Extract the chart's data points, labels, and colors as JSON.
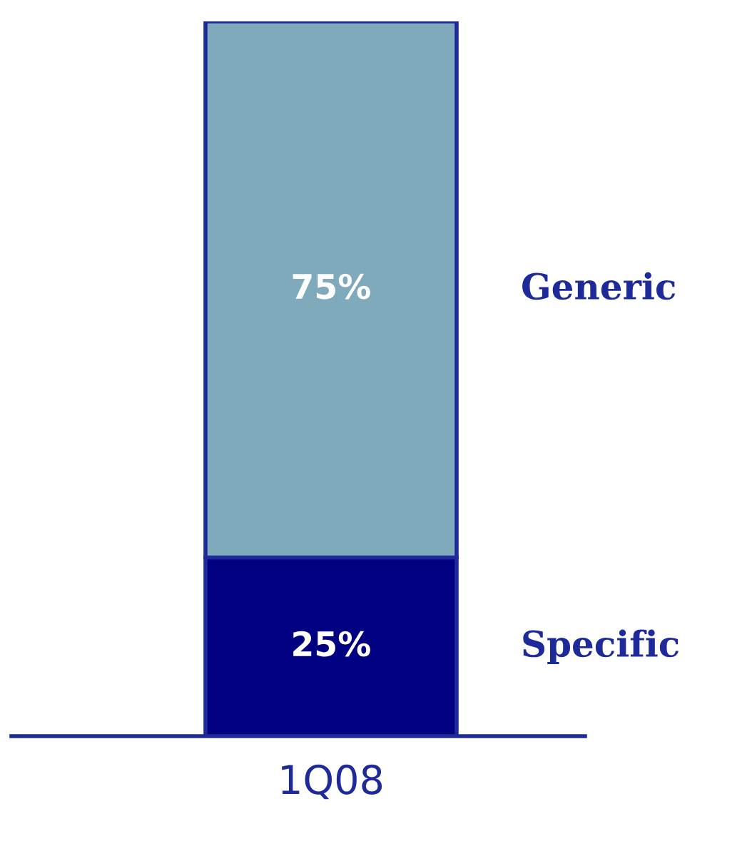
{
  "chart_data": {
    "type": "bar",
    "stacked": true,
    "categories": [
      "1Q08"
    ],
    "series": [
      {
        "name": "Specific",
        "color": "#000080",
        "values": [
          25
        ],
        "value_labels": [
          "25%"
        ]
      },
      {
        "name": "Generic",
        "color": "#7faabb",
        "values": [
          75
        ],
        "value_labels": [
          "75%"
        ]
      }
    ],
    "legend": false
  }
}
